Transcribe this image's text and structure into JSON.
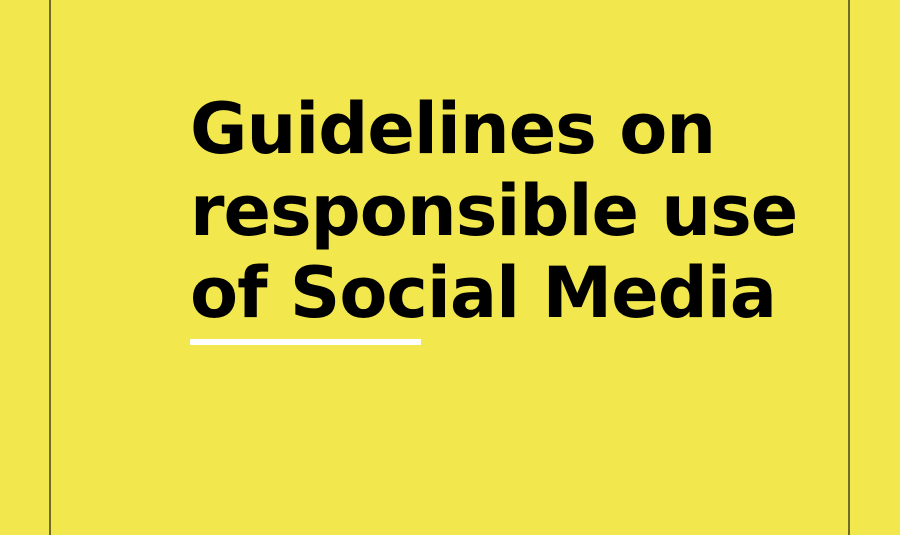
{
  "document": {
    "title_lines": [
      "Guidelines on",
      "responsible use",
      "of Social Media"
    ]
  },
  "colors": {
    "background": "#f2e84d",
    "text": "#000000",
    "accent_underline": "#ffffff",
    "frame_lines": "#6f6b2a"
  }
}
